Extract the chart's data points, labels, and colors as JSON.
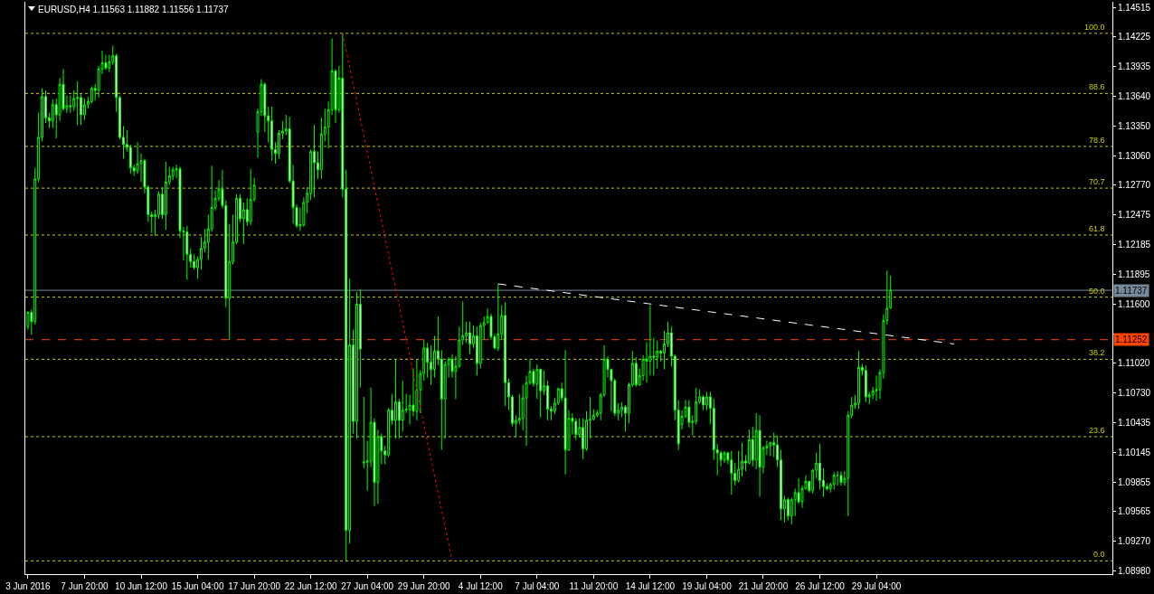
{
  "chart_data": {
    "type": "candlestick",
    "title": "EURUSD,H4 1.11563 1.11882 1.11556 1.11737",
    "categories": [
      "3 Jun 2016",
      null,
      null,
      null,
      null,
      null,
      null,
      null,
      null,
      null,
      null,
      null,
      null,
      null,
      null,
      null,
      "7 Jun 20:00",
      null,
      null,
      null,
      null,
      null,
      null,
      null,
      null,
      null,
      null,
      null,
      null,
      null,
      null,
      null,
      "10 Jun 12:00",
      null,
      null,
      null,
      null,
      null,
      null,
      null,
      null,
      null,
      null,
      null,
      null,
      null,
      null,
      null,
      "15 Jun 04:00",
      null,
      null,
      null,
      null,
      null,
      null,
      null,
      null,
      null,
      null,
      null,
      null,
      null,
      null,
      null,
      "17 Jun 20:00",
      null,
      null,
      null,
      null,
      null,
      null,
      null,
      null,
      null,
      null,
      null,
      null,
      null,
      null,
      null,
      "22 Jun 12:00",
      null,
      null,
      null,
      null,
      null,
      null,
      null,
      null,
      null,
      null,
      null,
      null,
      null,
      null,
      null,
      "27 Jun 04:00",
      null,
      null,
      null,
      null,
      null,
      null,
      null,
      null,
      null,
      null,
      null,
      null,
      null,
      null,
      null,
      "29 Jun 20:00",
      null,
      null,
      null,
      null,
      null,
      null,
      null,
      null,
      null,
      null,
      null,
      null,
      null,
      null,
      null,
      "4 Jul 12:00",
      null,
      null,
      null,
      null,
      null,
      null,
      null,
      null,
      null,
      null,
      null,
      null,
      null,
      null,
      null,
      "7 Jul 04:00",
      null,
      null,
      null,
      null,
      null,
      null,
      null,
      null,
      null,
      null,
      null,
      null,
      null,
      null,
      null,
      "11 Jul 20:00",
      null,
      null,
      null,
      null,
      null,
      null,
      null,
      null,
      null,
      null,
      null,
      null,
      null,
      null,
      null,
      "14 Jul 12:00",
      null,
      null,
      null,
      null,
      null,
      null,
      null,
      null,
      null,
      null,
      null,
      null,
      null,
      null,
      null,
      "19 Jul 04:00",
      null,
      null,
      null,
      null,
      null,
      null,
      null,
      null,
      null,
      null,
      null,
      null,
      null,
      null,
      null,
      "21 Jul 20:00",
      null,
      null,
      null,
      null,
      null,
      null,
      null,
      null,
      null,
      null,
      null,
      null,
      null,
      null,
      null,
      "26 Jul 12:00",
      null,
      null,
      null,
      null,
      null,
      null,
      null,
      null,
      null,
      null,
      null,
      null,
      null,
      null,
      null,
      "29 Jul 04:00",
      null,
      null,
      null,
      null,
      null,
      null,
      null,
      null,
      null,
      null,
      null,
      null,
      null,
      null,
      null,
      null,
      null,
      null,
      null,
      null,
      null,
      null,
      null,
      null,
      null,
      null,
      null,
      null,
      null,
      null,
      null,
      null,
      null,
      null,
      null,
      null,
      null,
      null,
      null,
      null,
      null,
      null,
      null,
      null,
      null,
      null,
      null,
      null,
      null,
      null,
      null,
      null,
      null,
      null,
      null,
      null,
      null,
      null,
      null,
      null,
      null,
      null,
      null,
      null,
      null,
      null,
      null
    ],
    "color": "#00ff00",
    "ohlc": [
      [
        1.1138,
        1.1153,
        1.1135,
        1.1152
      ],
      [
        1.1152,
        1.1155,
        1.113,
        1.1143
      ],
      [
        1.1143,
        1.1294,
        1.114,
        1.1283
      ],
      [
        1.1283,
        1.1348,
        1.128,
        1.1324
      ],
      [
        1.1324,
        1.1372,
        1.132,
        1.1364
      ],
      [
        1.1364,
        1.137,
        1.1338,
        1.1343
      ],
      [
        1.1343,
        1.1348,
        1.1333,
        1.134
      ],
      [
        1.134,
        1.1361,
        1.1333,
        1.1356
      ],
      [
        1.1356,
        1.1362,
        1.1323,
        1.1346
      ],
      [
        1.1346,
        1.1382,
        1.134,
        1.1376
      ],
      [
        1.1376,
        1.1391,
        1.135,
        1.1352
      ],
      [
        1.1352,
        1.1365,
        1.1348,
        1.1355
      ],
      [
        1.1355,
        1.1365,
        1.1348,
        1.1354
      ],
      [
        1.1354,
        1.137,
        1.135,
        1.1362
      ],
      [
        1.1362,
        1.1379,
        1.1336,
        1.1363
      ],
      [
        1.1363,
        1.1366,
        1.1336,
        1.1346
      ],
      [
        1.1346,
        1.1362,
        1.1341,
        1.1356
      ],
      [
        1.1356,
        1.1364,
        1.1352,
        1.1359
      ],
      [
        1.1359,
        1.1374,
        1.1357,
        1.1372
      ],
      [
        1.1372,
        1.1376,
        1.136,
        1.137
      ],
      [
        1.137,
        1.1394,
        1.1363,
        1.1391
      ],
      [
        1.1391,
        1.1409,
        1.1386,
        1.1397
      ],
      [
        1.1397,
        1.1405,
        1.139,
        1.1392
      ],
      [
        1.1392,
        1.1405,
        1.1388,
        1.1398
      ],
      [
        1.1398,
        1.1414,
        1.1395,
        1.1404
      ],
      [
        1.1404,
        1.1406,
        1.1349,
        1.1363
      ],
      [
        1.1363,
        1.1365,
        1.1322,
        1.1324
      ],
      [
        1.1324,
        1.1335,
        1.1303,
        1.1317
      ],
      [
        1.1317,
        1.1331,
        1.131,
        1.1314
      ],
      [
        1.1314,
        1.1317,
        1.1288,
        1.1294
      ],
      [
        1.1294,
        1.1297,
        1.1286,
        1.1291
      ],
      [
        1.1291,
        1.1319,
        1.1288,
        1.1298
      ],
      [
        1.1298,
        1.1308,
        1.128,
        1.1301
      ],
      [
        1.1301,
        1.1303,
        1.1269,
        1.1275
      ],
      [
        1.1275,
        1.1277,
        1.1241,
        1.1248
      ],
      [
        1.1248,
        1.1251,
        1.123,
        1.1246
      ],
      [
        1.1246,
        1.1253,
        1.1227,
        1.1248
      ],
      [
        1.1248,
        1.1271,
        1.1244,
        1.1268
      ],
      [
        1.1268,
        1.1275,
        1.1244,
        1.1248
      ],
      [
        1.1248,
        1.13,
        1.1233,
        1.128
      ],
      [
        1.128,
        1.1295,
        1.1277,
        1.1286
      ],
      [
        1.1286,
        1.1295,
        1.1282,
        1.1292
      ],
      [
        1.1292,
        1.1297,
        1.1284,
        1.1293
      ],
      [
        1.1293,
        1.1295,
        1.1225,
        1.1232
      ],
      [
        1.1232,
        1.1236,
        1.1203,
        1.1231
      ],
      [
        1.1231,
        1.1237,
        1.1184,
        1.1209
      ],
      [
        1.1209,
        1.1215,
        1.1196,
        1.1202
      ],
      [
        1.1202,
        1.1209,
        1.1194,
        1.1196
      ],
      [
        1.1196,
        1.1207,
        1.1185,
        1.1204
      ],
      [
        1.1204,
        1.1226,
        1.1194,
        1.1215
      ],
      [
        1.1215,
        1.1234,
        1.1211,
        1.1221
      ],
      [
        1.1221,
        1.1248,
        1.1204,
        1.1234
      ],
      [
        1.1234,
        1.1296,
        1.1231,
        1.1255
      ],
      [
        1.1255,
        1.1272,
        1.1252,
        1.1264
      ],
      [
        1.1264,
        1.1282,
        1.1261,
        1.1273
      ],
      [
        1.1273,
        1.1292,
        1.1254,
        1.1257
      ],
      [
        1.1257,
        1.1262,
        1.1157,
        1.1166
      ],
      [
        1.1166,
        1.1239,
        1.1125,
        1.1202
      ],
      [
        1.1202,
        1.1248,
        1.1199,
        1.1221
      ],
      [
        1.1221,
        1.1268,
        1.1219,
        1.1264
      ],
      [
        1.1264,
        1.1268,
        1.1241,
        1.1244
      ],
      [
        1.1244,
        1.126,
        1.1219,
        1.1253
      ],
      [
        1.1253,
        1.1264,
        1.1237,
        1.1241
      ],
      [
        1.1241,
        1.1293,
        1.1238,
        1.1263
      ],
      [
        1.1263,
        1.1284,
        1.1261,
        1.1277
      ],
      [
        1.1329,
        1.1352,
        1.1304,
        1.1349
      ],
      [
        1.1349,
        1.1381,
        1.1345,
        1.1376
      ],
      [
        1.1376,
        1.1378,
        1.1329,
        1.1345
      ],
      [
        1.1345,
        1.1354,
        1.1319,
        1.134
      ],
      [
        1.134,
        1.1354,
        1.1301,
        1.1312
      ],
      [
        1.1312,
        1.1319,
        1.1298,
        1.1308
      ],
      [
        1.1308,
        1.1331,
        1.1303,
        1.1328
      ],
      [
        1.1328,
        1.134,
        1.1322,
        1.133
      ],
      [
        1.133,
        1.1346,
        1.1326,
        1.1332
      ],
      [
        1.1332,
        1.1344,
        1.1279,
        1.1281
      ],
      [
        1.1281,
        1.1297,
        1.1239,
        1.1255
      ],
      [
        1.1255,
        1.1258,
        1.1235,
        1.1237
      ],
      [
        1.1237,
        1.1255,
        1.1232,
        1.1238
      ],
      [
        1.1238,
        1.1265,
        1.1236,
        1.126
      ],
      [
        1.126,
        1.1275,
        1.1249,
        1.1269
      ],
      [
        1.1269,
        1.1312,
        1.1262,
        1.131
      ],
      [
        1.131,
        1.1336,
        1.1265,
        1.1299
      ],
      [
        1.1299,
        1.131,
        1.1283,
        1.1292
      ],
      [
        1.1292,
        1.1343,
        1.1283,
        1.1327
      ],
      [
        1.1327,
        1.1352,
        1.132,
        1.1334
      ],
      [
        1.1334,
        1.1359,
        1.1313,
        1.1351
      ],
      [
        1.1351,
        1.1421,
        1.1346,
        1.1389
      ],
      [
        1.1389,
        1.1391,
        1.1338,
        1.1351
      ],
      [
        1.1351,
        1.1394,
        1.1348,
        1.1382
      ],
      [
        1.1382,
        1.1426,
        1.1265,
        1.1273
      ],
      [
        1.1273,
        1.1292,
        1.0908,
        1.0938
      ],
      [
        1.0938,
        1.1185,
        1.0925,
        1.112
      ],
      [
        1.112,
        1.1135,
        1.1033,
        1.1045
      ],
      [
        1.1045,
        1.1172,
        1.1028,
        1.116
      ],
      [
        1.116,
        1.1175,
        1.1078,
        1.1116
      ],
      [
        1.1004,
        1.1069,
        1.0999,
        1.1005
      ],
      [
        1.1005,
        1.1026,
        1.0977,
        1.1006
      ],
      [
        1.1006,
        1.1078,
        1.1,
        1.1044
      ],
      [
        1.1044,
        1.1048,
        1.0962,
        1.0985
      ],
      [
        1.0985,
        1.1037,
        1.0964,
        1.103
      ],
      [
        1.103,
        1.1033,
        1.1003,
        1.1016
      ],
      [
        1.1016,
        1.1021,
        1.1003,
        1.1012
      ],
      [
        1.1012,
        1.1058,
        1.101,
        1.1056
      ],
      [
        1.1056,
        1.1072,
        1.1042,
        1.1046
      ],
      [
        1.1046,
        1.1106,
        1.1028,
        1.1064
      ],
      [
        1.1064,
        1.1067,
        1.1028,
        1.1046
      ],
      [
        1.1046,
        1.1085,
        1.1035,
        1.1056
      ],
      [
        1.1056,
        1.1072,
        1.1053,
        1.1057
      ],
      [
        1.1057,
        1.1071,
        1.1042,
        1.1061
      ],
      [
        1.1061,
        1.1097,
        1.105,
        1.1055
      ],
      [
        1.1055,
        1.1106,
        1.1046,
        1.1076
      ],
      [
        1.1076,
        1.1095,
        1.1053,
        1.1092
      ],
      [
        1.1092,
        1.1125,
        1.1085,
        1.1117
      ],
      [
        1.1117,
        1.1122,
        1.1088,
        1.1103
      ],
      [
        1.1103,
        1.112,
        1.1081,
        1.1096
      ],
      [
        1.1096,
        1.1129,
        1.1088,
        1.1114
      ],
      [
        1.1114,
        1.1148,
        1.11,
        1.1106
      ],
      [
        1.1106,
        1.1115,
        1.1017,
        1.1067
      ],
      [
        1.1067,
        1.1104,
        1.1028,
        1.1101
      ],
      [
        1.1101,
        1.1108,
        1.1088,
        1.1106
      ],
      [
        1.1106,
        1.1111,
        1.1088,
        1.1094
      ],
      [
        1.1094,
        1.1109,
        1.1067,
        1.1099
      ],
      [
        1.1099,
        1.1138,
        1.1098,
        1.1125
      ],
      [
        1.1125,
        1.1163,
        1.112,
        1.1129
      ],
      [
        1.1129,
        1.1143,
        1.1122,
        1.1132
      ],
      [
        1.1132,
        1.1143,
        1.1111,
        1.1121
      ],
      [
        1.1121,
        1.1139,
        1.1117,
        1.1129
      ],
      [
        1.1129,
        1.1138,
        1.109,
        1.1102
      ],
      [
        1.1102,
        1.1142,
        1.1097,
        1.1139
      ],
      [
        1.1139,
        1.1148,
        1.1125,
        1.1142
      ],
      [
        1.1142,
        1.1156,
        1.1141,
        1.1148
      ],
      [
        1.1148,
        1.1151,
        1.1125,
        1.1128
      ],
      [
        1.1128,
        1.1131,
        1.1116,
        1.1117
      ],
      [
        1.1117,
        1.118,
        1.1114,
        1.1131
      ],
      [
        1.1131,
        1.1159,
        1.1125,
        1.1149
      ],
      [
        1.1149,
        1.1162,
        1.106,
        1.1083
      ],
      [
        1.1083,
        1.1087,
        1.1056,
        1.1069
      ],
      [
        1.1069,
        1.1071,
        1.104,
        1.1043
      ],
      [
        1.1043,
        1.1051,
        1.1029,
        1.1046
      ],
      [
        1.1046,
        1.1072,
        1.1042,
        1.1048
      ],
      [
        1.1048,
        1.1081,
        1.1036,
        1.1068
      ],
      [
        1.1068,
        1.109,
        1.1021,
        1.1083
      ],
      [
        1.1083,
        1.1106,
        1.1081,
        1.1094
      ],
      [
        1.1094,
        1.1097,
        1.1079,
        1.1082
      ],
      [
        1.1082,
        1.1101,
        1.1067,
        1.1096
      ],
      [
        1.1096,
        1.1097,
        1.1049,
        1.1075
      ],
      [
        1.1075,
        1.1095,
        1.1071,
        1.108
      ],
      [
        1.108,
        1.1085,
        1.1046,
        1.1057
      ],
      [
        1.1057,
        1.106,
        1.1046,
        1.1055
      ],
      [
        1.1055,
        1.1068,
        1.1052,
        1.1063
      ],
      [
        1.1063,
        1.1078,
        1.1061,
        1.1077
      ],
      [
        1.1077,
        1.1083,
        1.1065,
        1.1068
      ],
      [
        1.1068,
        1.1115,
        1.0993,
        1.1017
      ],
      [
        1.1017,
        1.1056,
        1.1016,
        1.1048
      ],
      [
        1.1048,
        1.1053,
        1.1032,
        1.1045
      ],
      [
        1.1045,
        1.1048,
        1.1027,
        1.1032
      ],
      [
        1.1032,
        1.1048,
        1.1029,
        1.1039
      ],
      [
        1.1039,
        1.1048,
        1.1008,
        1.1018
      ],
      [
        1.1018,
        1.1055,
        1.1016,
        1.1046
      ],
      [
        1.1046,
        1.1069,
        1.1028,
        1.1047
      ],
      [
        1.1047,
        1.1057,
        1.1046,
        1.1051
      ],
      [
        1.1051,
        1.1056,
        1.1049,
        1.1053
      ],
      [
        1.1053,
        1.1073,
        1.1046,
        1.1071
      ],
      [
        1.1071,
        1.112,
        1.1069,
        1.1106
      ],
      [
        1.1106,
        1.1109,
        1.1088,
        1.1096
      ],
      [
        1.1096,
        1.1097,
        1.1055,
        1.1085
      ],
      [
        1.1085,
        1.1087,
        1.105,
        1.1053
      ],
      [
        1.1053,
        1.1063,
        1.1046,
        1.1056
      ],
      [
        1.1056,
        1.1064,
        1.1049,
        1.1059
      ],
      [
        1.1059,
        1.1061,
        1.1035,
        1.1053
      ],
      [
        1.1053,
        1.1083,
        1.1043,
        1.1081
      ],
      [
        1.1081,
        1.1114,
        1.1079,
        1.1102
      ],
      [
        1.1102,
        1.1108,
        1.1079,
        1.1081
      ],
      [
        1.1081,
        1.1097,
        1.108,
        1.109
      ],
      [
        1.109,
        1.111,
        1.1085,
        1.1106
      ],
      [
        1.1106,
        1.1123,
        1.1083,
        1.1104
      ],
      [
        1.1104,
        1.1159,
        1.109,
        1.1109
      ],
      [
        1.1109,
        1.1127,
        1.109,
        1.1108
      ],
      [
        1.1108,
        1.1124,
        1.1097,
        1.1114
      ],
      [
        1.1114,
        1.1115,
        1.1104,
        1.1112
      ],
      [
        1.1112,
        1.1134,
        1.1096,
        1.1121
      ],
      [
        1.1121,
        1.1143,
        1.1118,
        1.1132
      ],
      [
        1.1132,
        1.1138,
        1.1099,
        1.1109
      ],
      [
        1.1109,
        1.1111,
        1.1046,
        1.1056
      ],
      [
        1.1056,
        1.1066,
        1.1017,
        1.1023
      ],
      [
        1.1042,
        1.1056,
        1.1037,
        1.105
      ],
      [
        1.105,
        1.1066,
        1.1048,
        1.1059
      ],
      [
        1.1059,
        1.1066,
        1.1039,
        1.1044
      ],
      [
        1.1044,
        1.1051,
        1.1031,
        1.1045
      ],
      [
        1.1045,
        1.1078,
        1.1042,
        1.1064
      ],
      [
        1.1064,
        1.1076,
        1.1062,
        1.1069
      ],
      [
        1.1069,
        1.1071,
        1.1056,
        1.1061
      ],
      [
        1.1061,
        1.1074,
        1.1056,
        1.1069
      ],
      [
        1.1069,
        1.1074,
        1.1042,
        1.1058
      ],
      [
        1.1058,
        1.1067,
        1.1007,
        1.1017
      ],
      [
        1.1017,
        1.1023,
        1.0992,
        1.1014
      ],
      [
        1.1014,
        1.1016,
        1.1001,
        1.1007
      ],
      [
        1.1007,
        1.1016,
        1.1004,
        1.1014
      ],
      [
        1.1014,
        1.1015,
        1.1003,
        1.1007
      ],
      [
        1.1007,
        1.1016,
        1.0973,
        1.0994
      ],
      [
        1.0994,
        1.1004,
        1.0982,
        1.0987
      ],
      [
        1.0987,
        1.1016,
        1.0985,
        1.0998
      ],
      [
        1.0998,
        1.1024,
        1.0991,
        1.1006
      ],
      [
        1.1006,
        1.1012,
        1.0996,
        1.1004
      ],
      [
        1.1004,
        1.1037,
        1.1003,
        1.1027
      ],
      [
        1.1027,
        1.104,
        1.1001,
        1.1007
      ],
      [
        1.1007,
        1.1053,
        1.0998,
        1.1036
      ],
      [
        1.1036,
        1.1051,
        1.0971,
        1.1
      ],
      [
        1.1,
        1.1021,
        1.0994,
        1.1019
      ],
      [
        1.1019,
        1.1026,
        1.1012,
        1.1021
      ],
      [
        1.1021,
        1.1025,
        1.1011,
        1.1024
      ],
      [
        1.1024,
        1.1034,
        1.101,
        1.1022
      ],
      [
        1.1022,
        1.1031,
        1.1,
        1.1007
      ],
      [
        1.1007,
        1.1017,
        1.0948,
        1.0959
      ],
      [
        1.0959,
        1.0972,
        1.0946,
        1.0968
      ],
      [
        1.0968,
        1.097,
        1.0948,
        1.0952
      ],
      [
        1.0952,
        1.097,
        1.0944,
        1.0968
      ],
      [
        1.0968,
        1.0979,
        1.0952,
        1.0975
      ],
      [
        1.0975,
        1.0989,
        1.0964,
        1.0966
      ],
      [
        1.0966,
        1.0982,
        1.096,
        1.0979
      ],
      [
        1.0979,
        1.0992,
        1.0978,
        1.0986
      ],
      [
        1.0986,
        1.0987,
        1.0975,
        1.0977
      ],
      [
        1.0977,
        1.0998,
        1.0974,
        1.0997
      ],
      [
        1.0997,
        1.1014,
        1.0989,
        1.1004
      ],
      [
        1.1004,
        1.1023,
        1.0978,
        1.0987
      ],
      [
        1.0987,
        1.0999,
        1.0971,
        1.0981
      ],
      [
        1.0981,
        1.0984,
        1.0977,
        1.0979
      ],
      [
        1.0979,
        1.0985,
        1.0975,
        1.0983
      ],
      [
        1.0983,
        1.0995,
        1.0978,
        1.0992
      ],
      [
        1.0992,
        1.0996,
        1.0982,
        1.0992
      ],
      [
        1.0992,
        1.0996,
        1.0982,
        1.0985
      ],
      [
        1.0985,
        1.0996,
        1.0982,
        1.0989
      ],
      [
        1.0989,
        1.1055,
        1.0952,
        1.1051
      ],
      [
        1.1051,
        1.1069,
        1.1048,
        1.1061
      ],
      [
        1.1061,
        1.1071,
        1.1057,
        1.1063
      ],
      [
        1.1063,
        1.1114,
        1.1057,
        1.1098
      ],
      [
        1.1098,
        1.1101,
        1.109,
        1.1095
      ],
      [
        1.1095,
        1.11,
        1.1064,
        1.1069
      ],
      [
        1.1069,
        1.1074,
        1.1062,
        1.1071
      ],
      [
        1.1071,
        1.1079,
        1.1067,
        1.1075
      ],
      [
        1.1075,
        1.109,
        1.1065,
        1.1076
      ],
      [
        1.1076,
        1.1096,
        1.1067,
        1.1093
      ],
      [
        1.1093,
        1.115,
        1.1087,
        1.1144
      ],
      [
        1.1144,
        1.1193,
        1.114,
        1.1156
      ],
      [
        1.11563,
        1.11882,
        1.11556,
        1.11737
      ],
      null,
      null,
      null,
      null,
      null,
      null,
      null,
      null,
      null,
      null,
      null,
      null,
      null,
      null,
      null,
      null,
      null,
      null,
      null,
      null,
      null,
      null,
      null,
      null,
      null,
      null,
      null,
      null,
      null,
      null,
      null,
      null,
      null,
      null,
      null,
      null,
      null,
      null,
      null,
      null,
      null,
      null,
      null,
      null,
      null,
      null,
      null,
      null,
      null,
      null,
      null,
      null,
      null,
      null,
      null,
      null,
      null,
      null,
      null,
      null,
      null,
      null,
      null
    ],
    "series": [
      {
        "type": "line",
        "color": "#ff0000",
        "line_style": "dotted",
        "values": [
          null,
          null,
          null,
          null,
          null,
          null,
          null,
          null,
          null,
          null,
          null,
          null,
          null,
          null,
          null,
          null,
          null,
          null,
          null,
          null,
          null,
          null,
          null,
          null,
          null,
          null,
          null,
          null,
          null,
          null,
          null,
          null,
          null,
          null,
          null,
          null,
          null,
          null,
          null,
          null,
          null,
          null,
          null,
          null,
          null,
          null,
          null,
          null,
          null,
          null,
          null,
          null,
          null,
          null,
          null,
          null,
          null,
          null,
          null,
          null,
          null,
          null,
          null,
          null,
          null,
          null,
          null,
          null,
          null,
          null,
          null,
          null,
          null,
          null,
          null,
          null,
          null,
          null,
          null,
          null,
          null,
          null,
          null,
          null,
          null,
          null,
          null,
          null,
          null,
          1.1426,
          null,
          null,
          null,
          null,
          null,
          null,
          null,
          null,
          null,
          null,
          null,
          null,
          null,
          null,
          null,
          null,
          null,
          null,
          null,
          null,
          null,
          null,
          null,
          null,
          null,
          null,
          null,
          null,
          null,
          null,
          1.0908,
          null,
          null,
          null,
          null,
          null,
          null,
          null,
          null,
          null,
          null,
          null,
          null,
          null,
          null,
          null,
          null,
          null,
          null,
          null,
          null,
          null,
          null,
          null,
          null,
          null,
          null,
          null,
          null,
          null,
          null,
          null,
          null,
          null,
          null,
          null,
          null,
          null,
          null,
          null,
          null,
          null,
          null,
          null,
          null,
          null,
          null,
          null,
          null,
          null,
          null,
          null,
          null,
          null,
          null,
          null,
          null,
          null,
          null,
          null,
          null,
          null,
          null,
          null,
          null,
          null,
          null,
          null,
          null,
          null,
          null,
          null,
          null,
          null,
          null,
          null,
          null,
          null,
          null,
          null,
          null,
          null,
          null,
          null,
          null,
          null,
          null,
          null,
          null,
          null,
          null,
          null,
          null,
          null,
          null,
          null,
          null,
          null,
          null,
          null,
          null,
          null,
          null,
          null,
          null,
          null,
          null,
          null,
          null,
          null,
          null,
          null,
          null,
          null,
          null,
          null,
          null,
          null,
          null,
          null,
          null,
          null,
          null,
          null,
          null,
          null,
          null,
          null,
          null,
          null,
          null,
          null,
          null,
          null,
          null,
          null,
          null,
          null,
          null,
          null,
          null,
          null,
          null,
          null,
          null,
          null,
          null,
          null,
          null,
          null,
          null,
          null,
          null,
          null,
          null,
          null,
          null,
          null,
          null,
          null,
          null,
          null,
          null,
          null,
          null,
          null,
          null,
          null,
          null,
          null,
          null,
          null,
          null,
          null,
          null,
          null,
          null,
          null,
          null,
          null,
          null,
          null,
          null,
          null,
          null,
          null,
          null,
          null
        ]
      },
      {
        "type": "line",
        "color": "#ffffff",
        "line_style": "dashed",
        "values": [
          null,
          null,
          null,
          null,
          null,
          null,
          null,
          null,
          null,
          null,
          null,
          null,
          null,
          null,
          null,
          null,
          null,
          null,
          null,
          null,
          null,
          null,
          null,
          null,
          null,
          null,
          null,
          null,
          null,
          null,
          null,
          null,
          null,
          null,
          null,
          null,
          null,
          null,
          null,
          null,
          null,
          null,
          null,
          null,
          null,
          null,
          null,
          null,
          null,
          null,
          null,
          null,
          null,
          null,
          null,
          null,
          null,
          null,
          null,
          null,
          null,
          null,
          null,
          null,
          null,
          null,
          null,
          null,
          null,
          null,
          null,
          null,
          null,
          null,
          null,
          null,
          null,
          null,
          null,
          null,
          null,
          null,
          null,
          null,
          null,
          null,
          null,
          null,
          null,
          null,
          null,
          null,
          null,
          null,
          null,
          null,
          null,
          null,
          null,
          null,
          null,
          null,
          null,
          null,
          null,
          null,
          null,
          null,
          null,
          null,
          null,
          null,
          null,
          null,
          null,
          null,
          null,
          null,
          null,
          null,
          null,
          null,
          null,
          null,
          null,
          null,
          null,
          null,
          null,
          null,
          null,
          null,
          null,
          1.118,
          null,
          null,
          null,
          null,
          null,
          null,
          null,
          null,
          null,
          null,
          null,
          null,
          null,
          null,
          null,
          null,
          null,
          null,
          null,
          null,
          null,
          null,
          null,
          null,
          null,
          null,
          null,
          null,
          null,
          null,
          null,
          null,
          null,
          null,
          null,
          null,
          null,
          null,
          null,
          null,
          null,
          null,
          null,
          null,
          null,
          null,
          null,
          null,
          null,
          null,
          null,
          null,
          null,
          null,
          null,
          null,
          null,
          null,
          null,
          null,
          null,
          null,
          null,
          null,
          null,
          null,
          null,
          null,
          null,
          null,
          null,
          null,
          null,
          null,
          null,
          null,
          null,
          null,
          null,
          null,
          null,
          null,
          null,
          null,
          null,
          null,
          null,
          null,
          null,
          null,
          null,
          null,
          null,
          null,
          null,
          null,
          null,
          null,
          null,
          null,
          null,
          null,
          null,
          null,
          null,
          null,
          null,
          null,
          null,
          null,
          null,
          null,
          null,
          null,
          null,
          null,
          null,
          null,
          null,
          null,
          null,
          null,
          null,
          null,
          null,
          null,
          null,
          null,
          1.1121,
          null,
          null,
          null,
          null,
          null,
          null,
          null,
          null,
          null,
          null,
          null,
          null,
          null,
          null,
          null,
          null,
          null,
          null,
          null,
          null,
          null,
          null,
          null,
          null,
          null,
          null,
          null,
          null,
          null,
          null,
          null,
          null,
          null,
          null,
          null,
          null,
          null,
          null,
          null,
          null,
          null,
          null,
          null,
          null,
          null
        ]
      }
    ],
    "ylim": [
      1.0895,
      1.1457
    ],
    "yticks": [
      {
        "value": 1.14515,
        "label": "1.14515"
      },
      {
        "value": 1.14225,
        "label": "1.14225"
      },
      {
        "value": 1.13935,
        "label": "1.13935"
      },
      {
        "value": 1.1364,
        "label": "1.13640"
      },
      {
        "value": 1.1335,
        "label": "1.13350"
      },
      {
        "value": 1.1306,
        "label": "1.13060"
      },
      {
        "value": 1.1277,
        "label": "1.12770"
      },
      {
        "value": 1.12475,
        "label": "1.12475"
      },
      {
        "value": 1.12185,
        "label": "1.12185"
      },
      {
        "value": 1.11895,
        "label": "1.11895"
      },
      {
        "value": 1.116,
        "label": "1.11600"
      },
      {
        "value": 1.1131,
        "label": null
      },
      {
        "value": 1.1102,
        "label": "1.11020"
      },
      {
        "value": 1.1073,
        "label": "1.10730"
      },
      {
        "value": 1.10435,
        "label": "1.10435"
      },
      {
        "value": 1.10145,
        "label": "1.10145"
      },
      {
        "value": 1.09855,
        "label": "1.09855"
      },
      {
        "value": 1.09565,
        "label": "1.09565"
      },
      {
        "value": 1.0927,
        "label": "1.09270"
      },
      {
        "value": 1.0898,
        "label": "1.08980"
      }
    ],
    "ref_lines": [
      {
        "axis": "y",
        "value": 1.1426,
        "color": "#cccc00",
        "line_style": "dotted"
      },
      {
        "axis": "y",
        "value": 1.1367,
        "color": "#cccc00",
        "line_style": "dotted"
      },
      {
        "axis": "y",
        "value": 1.1315,
        "color": "#cccc00",
        "line_style": "dotted"
      },
      {
        "axis": "y",
        "value": 1.1274,
        "color": "#cccc00",
        "line_style": "dotted"
      },
      {
        "axis": "y",
        "value": 1.1228,
        "color": "#cccc00",
        "line_style": "dotted"
      },
      {
        "axis": "y",
        "value": 1.1167,
        "color": "#cccc00",
        "line_style": "dotted"
      },
      {
        "axis": "y",
        "value": 1.1106,
        "color": "#cccc00",
        "line_style": "dotted"
      },
      {
        "axis": "y",
        "value": 1.103,
        "color": "#cccc00",
        "line_style": "dotted"
      },
      {
        "axis": "y",
        "value": 1.0908,
        "color": "#cccc00",
        "line_style": "dotted"
      },
      {
        "axis": "y",
        "value": 1.11737,
        "label": "1.11737",
        "color": "#778899",
        "line_style": "solid"
      },
      {
        "axis": "y",
        "value": 1.11252,
        "label": "1.11252",
        "color": "#ff4500",
        "line_style": "dashed"
      }
    ],
    "annotations": [
      {
        "text": "100.0",
        "y": 1.1426
      },
      {
        "text": "88.6",
        "y": 1.1367
      },
      {
        "text": "78.6",
        "y": 1.1315
      },
      {
        "text": "70.7",
        "y": 1.1274
      },
      {
        "text": "61.8",
        "y": 1.1228
      },
      {
        "text": "50.0",
        "y": 1.1167
      },
      {
        "text": "38.2",
        "y": 1.1106
      },
      {
        "text": "23.6",
        "y": 1.103
      },
      {
        "text": "0.0",
        "y": 1.0908
      }
    ]
  }
}
